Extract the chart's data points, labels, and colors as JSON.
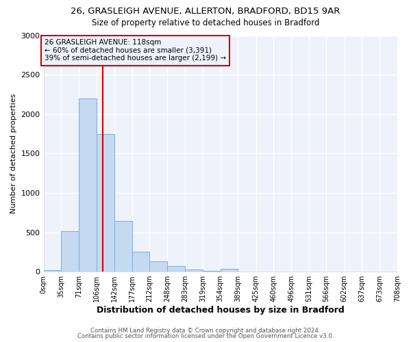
{
  "title1": "26, GRASLEIGH AVENUE, ALLERTON, BRADFORD, BD15 9AR",
  "title2": "Size of property relative to detached houses in Bradford",
  "xlabel": "Distribution of detached houses by size in Bradford",
  "ylabel": "Number of detached properties",
  "bin_edges": [
    0,
    35,
    71,
    106,
    142,
    177,
    212,
    248,
    283,
    319,
    354,
    389,
    425,
    460,
    496,
    531,
    566,
    602,
    637,
    673,
    708
  ],
  "counts": [
    20,
    510,
    2200,
    1750,
    640,
    255,
    130,
    70,
    30,
    10,
    40,
    5,
    2,
    2,
    1,
    1,
    1,
    1,
    1,
    1
  ],
  "bar_color": "#c5d9f0",
  "bar_edge_color": "#7aadda",
  "property_size": 118,
  "property_line_color": "#cc0000",
  "annotation_line1": "26 GRASLEIGH AVENUE: 118sqm",
  "annotation_line2": "← 60% of detached houses are smaller (3,391)",
  "annotation_line3": "39% of semi-detached houses are larger (2,199) →",
  "annotation_box_edge_color": "#cc0000",
  "ylim": [
    0,
    3000
  ],
  "yticks": [
    0,
    500,
    1000,
    1500,
    2000,
    2500,
    3000
  ],
  "footer1": "Contains HM Land Registry data © Crown copyright and database right 2024.",
  "footer2": "Contains public sector information licensed under the Open Government Licence v3.0.",
  "background_color": "#ffffff",
  "plot_bg_color": "#eef2fa",
  "grid_color": "#ffffff"
}
